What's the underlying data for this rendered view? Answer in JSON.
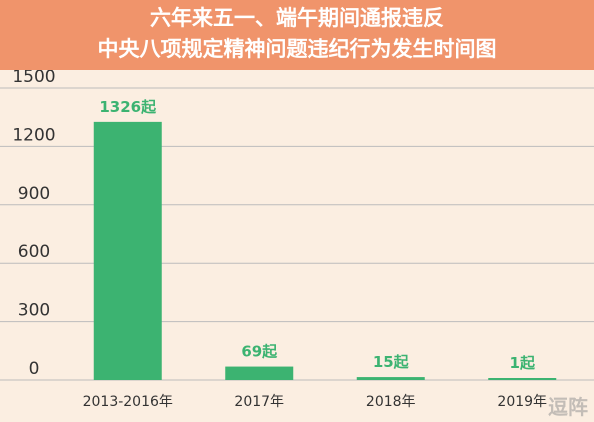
{
  "header": {
    "title_line1": "六年来五一、端午期间通报违反",
    "title_line2": "中央八项规定精神问题违纪行为发生时间图"
  },
  "watermark": "逗阵",
  "colors": {
    "header_bg": "#f0946b",
    "background": "#fbeee1",
    "bar": "#3cb371",
    "label": "#3cb371",
    "axis_text": "#333333",
    "grid": "#bcbcbc"
  },
  "chart_data": {
    "type": "bar",
    "categories": [
      "2013-2016年",
      "2017年",
      "2018年",
      "2019年"
    ],
    "values": [
      1326,
      69,
      15,
      1
    ],
    "value_labels": [
      "1326起",
      "69起",
      "15起",
      "1起"
    ],
    "yticks": [
      "0",
      "300",
      "600",
      "900",
      "1200",
      "1500"
    ],
    "ylim": [
      0,
      1500
    ],
    "grid": true,
    "legend": "none"
  }
}
